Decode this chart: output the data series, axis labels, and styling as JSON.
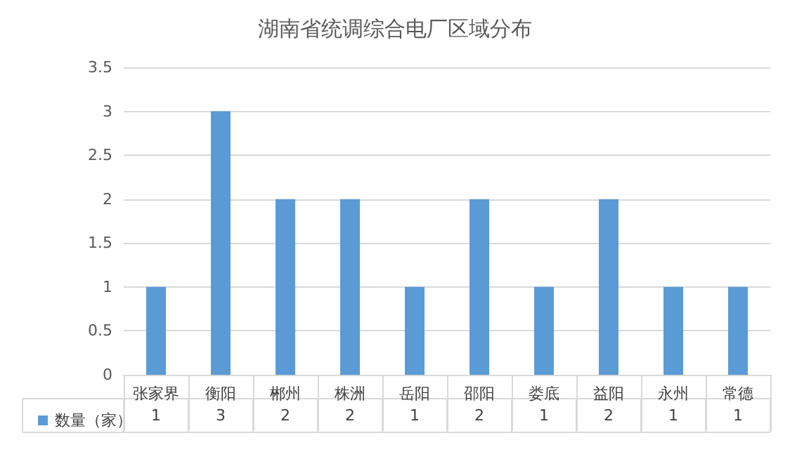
{
  "chart_data": {
    "type": "bar",
    "title": "湖南省统调综合电厂区域分布",
    "categories": [
      "张家界",
      "衡阳",
      "郴州",
      "株洲",
      "岳阳",
      "邵阳",
      "娄底",
      "益阳",
      "永州",
      "常德"
    ],
    "series": [
      {
        "name": "数量（家）",
        "color": "#5b9bd5",
        "values": [
          1,
          3,
          2,
          2,
          1,
          2,
          1,
          2,
          1,
          1
        ]
      }
    ],
    "ylim": [
      0,
      3.5
    ],
    "yticks": [
      0,
      0.5,
      1,
      1.5,
      2,
      2.5,
      3,
      3.5
    ],
    "grid": "y",
    "legend": "bottom left",
    "data_labels": true
  }
}
